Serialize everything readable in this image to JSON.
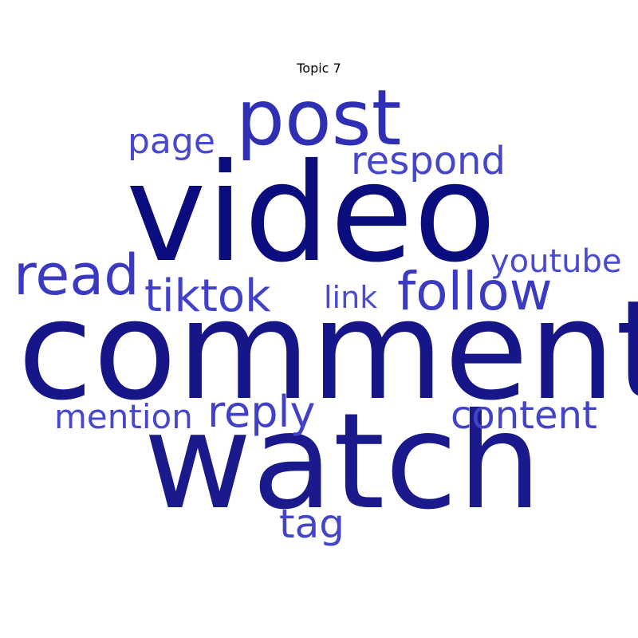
{
  "title": "Topic 7",
  "words": {
    "video": {
      "text": "video",
      "color": "#0b0c7e"
    },
    "comment": {
      "text": "comment",
      "color": "#161689"
    },
    "watch": {
      "text": "watch",
      "color": "#1a1a8c"
    },
    "post": {
      "text": "post",
      "color": "#2f2fb5"
    },
    "read": {
      "text": "read",
      "color": "#3a3ac0"
    },
    "follow": {
      "text": "follow",
      "color": "#3b3bc2"
    },
    "tiktok": {
      "text": "tiktok",
      "color": "#4040c8"
    },
    "reply": {
      "text": "reply",
      "color": "#4040c9"
    },
    "respond": {
      "text": "respond",
      "color": "#4646cc"
    },
    "tag": {
      "text": "tag",
      "color": "#4444cb"
    },
    "content": {
      "text": "content",
      "color": "#4343ca"
    },
    "page": {
      "text": "page",
      "color": "#4949cf"
    },
    "mention": {
      "text": "mention",
      "color": "#4747cd"
    },
    "youtube": {
      "text": "youtube",
      "color": "#4a4ad0"
    },
    "link": {
      "text": "link",
      "color": "#4b4bd1"
    }
  }
}
